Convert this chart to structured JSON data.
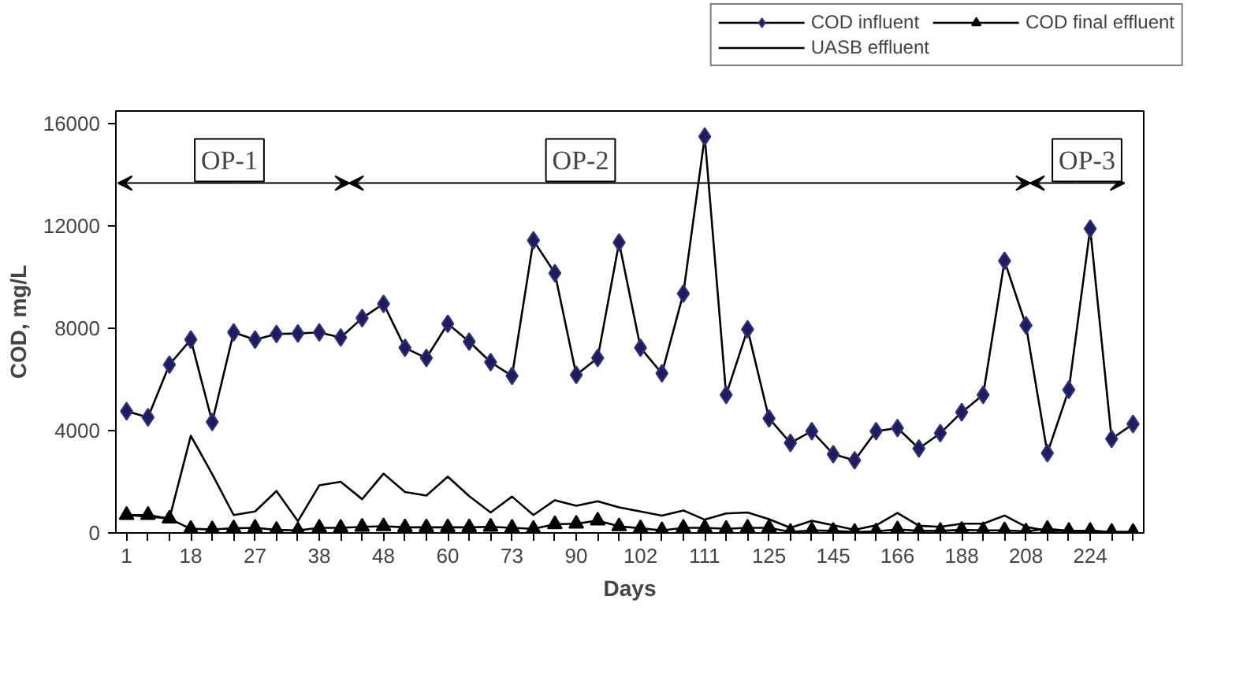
{
  "chart_data": {
    "type": "line",
    "xlabel": "Days",
    "ylabel": "COD, mg/L",
    "categories": [
      "1",
      null,
      null,
      "18",
      null,
      null,
      "27",
      null,
      null,
      "38",
      null,
      null,
      "48",
      null,
      null,
      "60",
      null,
      null,
      "73",
      null,
      null,
      "90",
      null,
      null,
      "102",
      null,
      null,
      "111",
      null,
      null,
      "125",
      null,
      null,
      "145",
      null,
      null,
      "166",
      null,
      null,
      "188",
      null,
      null,
      "208",
      null,
      null,
      "224",
      null,
      null
    ],
    "series": [
      {
        "name": "COD influent",
        "color": "#1c1c5e",
        "marker": "diamond",
        "values": [
          4760,
          4520,
          6580,
          7560,
          4340,
          7840,
          7560,
          7780,
          7800,
          7840,
          7640,
          8400,
          8960,
          7240,
          6840,
          8180,
          7480,
          6680,
          6140,
          11440,
          10160,
          6180,
          6840,
          11360,
          7240,
          6240,
          9360,
          15500,
          5400,
          7960,
          4480,
          3520,
          3980,
          3080,
          2840,
          3980,
          4100,
          3300,
          3900,
          4720,
          5400,
          10640,
          8120,
          3120,
          5600,
          11900,
          3680,
          4260
        ]
      },
      {
        "name": "COD final effluent",
        "color": "#000000",
        "marker": "triangle",
        "values": [
          700,
          700,
          560,
          160,
          140,
          180,
          200,
          120,
          100,
          200,
          200,
          240,
          260,
          220,
          220,
          220,
          220,
          240,
          200,
          160,
          340,
          360,
          480,
          260,
          180,
          100,
          200,
          200,
          160,
          200,
          200,
          40,
          100,
          80,
          40,
          60,
          140,
          80,
          80,
          120,
          100,
          100,
          60,
          160,
          80,
          80,
          40,
          40
        ]
      },
      {
        "name": "UASB effluent",
        "color": "#000000",
        "marker": "none",
        "values": [
          700,
          640,
          560,
          3800,
          2300,
          700,
          840,
          1640,
          460,
          1860,
          2000,
          1320,
          2320,
          1600,
          1460,
          2200,
          1440,
          800,
          1420,
          700,
          1280,
          1060,
          1240,
          1000,
          840,
          680,
          880,
          520,
          760,
          800,
          540,
          200,
          480,
          300,
          120,
          300,
          780,
          280,
          240,
          360,
          360,
          680,
          240,
          80,
          80,
          80,
          40,
          40
        ]
      }
    ],
    "ylim": [
      0,
      16500
    ],
    "yticks": [
      0,
      4000,
      8000,
      12000,
      16000
    ],
    "annotations": [
      "OP-1",
      "OP-2",
      "OP-3"
    ],
    "grid": false,
    "legend": "top right"
  }
}
